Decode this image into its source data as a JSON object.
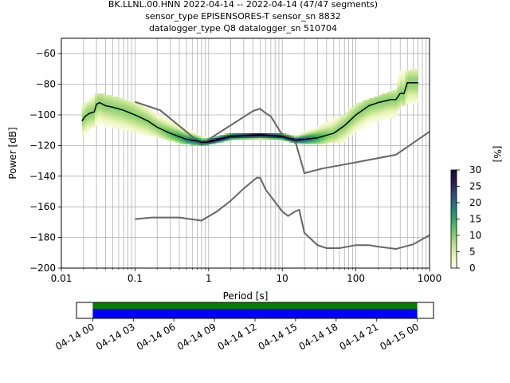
{
  "title": {
    "line1": "BK.LLNL.00.HNN   2022-04-14 -- 2022-04-14  (47/47 segments)",
    "line2": "sensor_type EPISENSORES-T sensor_sn 8832",
    "line3": "datalogger_type Q8 datalogger_sn 510704"
  },
  "colors": {
    "mean": "#000000",
    "noise_models": "#666666",
    "grid": "#b0b0b0",
    "coverage_data": "#008000",
    "coverage_gaps": "#0000ff"
  },
  "chart_data": [
    {
      "type": "heatmap",
      "title": "",
      "xlabel": "Period [s]",
      "ylabel": "Power [dB]",
      "xscale": "log",
      "xlim": [
        0.01,
        1000
      ],
      "ylim": [
        -200,
        -50
      ],
      "x_ticks": [
        0.01,
        0.1,
        1,
        10,
        100,
        1000
      ],
      "x_tick_labels": [
        "0.01",
        "0.1",
        "1",
        "10",
        "100",
        "1000"
      ],
      "y_ticks": [
        -200,
        -180,
        -160,
        -140,
        -120,
        -100,
        -80,
        -60
      ],
      "y_tick_labels": [
        "−200",
        "−180",
        "−160",
        "−140",
        "−120",
        "−100",
        "−80",
        "−60"
      ],
      "grid": true,
      "colorbar": {
        "label": "[%]",
        "range": [
          0,
          30
        ],
        "ticks": [
          0,
          5,
          10,
          15,
          20,
          25,
          30
        ],
        "colormap": [
          "#fffff0",
          "#e8f3b3",
          "#b5de84",
          "#6cc95e",
          "#2ea86a",
          "#1f7d7a",
          "#2a4e7c",
          "#301a4e",
          "#140a28"
        ]
      },
      "series": [
        {
          "name": "mean",
          "period": [
            0.019,
            0.021,
            0.024,
            0.028,
            0.03,
            0.033,
            0.04,
            0.05,
            0.07,
            0.1,
            0.15,
            0.2,
            0.3,
            0.5,
            0.7,
            0.8,
            1.0,
            1.5,
            2,
            3,
            5,
            7,
            10,
            15,
            20,
            30,
            50,
            70,
            100,
            150,
            200,
            300,
            350,
            400,
            450,
            500,
            700
          ],
          "power": [
            -104,
            -101,
            -99,
            -98,
            -93,
            -92,
            -94,
            -95,
            -97,
            -100,
            -104,
            -108,
            -112,
            -116,
            -117,
            -118,
            -117.5,
            -115.5,
            -114,
            -113.5,
            -113,
            -113.5,
            -114,
            -116.5,
            -116,
            -115,
            -112,
            -107,
            -100,
            -94,
            -92,
            -90,
            -90,
            -86,
            -86,
            -79,
            -79
          ]
        },
        {
          "name": "high-noise-model",
          "period": [
            0.1,
            0.22,
            0.8,
            4,
            5,
            6,
            7,
            10,
            15,
            20,
            35,
            100,
            350,
            1000
          ],
          "power": [
            -91.5,
            -97,
            -119,
            -97.5,
            -96,
            -99,
            -101,
            -113,
            -117,
            -138,
            -135,
            -131,
            -126,
            -111
          ]
        },
        {
          "name": "low-noise-model",
          "period": [
            0.1,
            0.17,
            0.4,
            0.8,
            1.3,
            2,
            3,
            4.5,
            5,
            6,
            10,
            12,
            15,
            17,
            20,
            30,
            40,
            60,
            100,
            150,
            200,
            350,
            600,
            1000
          ],
          "power": [
            -168,
            -167,
            -167,
            -169,
            -163,
            -156,
            -148,
            -141,
            -141,
            -149,
            -163,
            -166,
            -163,
            -162,
            -177,
            -185,
            -187,
            -187,
            -185,
            -185,
            -186,
            -187.5,
            -184.5,
            -178.5
          ]
        }
      ],
      "density_band": [
        {
          "period": 0.019,
          "low": -113,
          "high": -95
        },
        {
          "period": 0.03,
          "low": -106,
          "high": -86
        },
        {
          "period": 0.05,
          "low": -108,
          "high": -88
        },
        {
          "period": 0.1,
          "low": -111,
          "high": -92
        },
        {
          "period": 0.2,
          "low": -114,
          "high": -100
        },
        {
          "period": 0.4,
          "low": -118,
          "high": -107
        },
        {
          "period": 0.8,
          "low": -120,
          "high": -114
        },
        {
          "period": 1.0,
          "low": -119,
          "high": -116
        },
        {
          "period": 2.0,
          "low": -116,
          "high": -112
        },
        {
          "period": 5.0,
          "low": -115,
          "high": -112
        },
        {
          "period": 10,
          "low": -116,
          "high": -112
        },
        {
          "period": 15,
          "low": -118,
          "high": -114
        },
        {
          "period": 20,
          "low": -119,
          "high": -112
        },
        {
          "period": 40,
          "low": -118,
          "high": -105
        },
        {
          "period": 70,
          "low": -117,
          "high": -100
        },
        {
          "period": 100,
          "low": -110,
          "high": -93
        },
        {
          "period": 200,
          "low": -106,
          "high": -88
        },
        {
          "period": 350,
          "low": -101,
          "high": -84
        },
        {
          "period": 400,
          "low": -94,
          "high": -72
        },
        {
          "period": 700,
          "low": -91,
          "high": -70
        }
      ]
    },
    {
      "type": "bar",
      "title": "",
      "xlabel": "",
      "ylabel": "",
      "x_tick_labels": [
        "04-14 00",
        "04-14 03",
        "04-14 06",
        "04-14 09",
        "04-14 12",
        "04-14 15",
        "04-14 18",
        "04-14 21",
        "04-15 00"
      ],
      "xlim_hours": [
        -1.2,
        25.2
      ],
      "coverage": [
        {
          "name": "data",
          "start_hour": 0,
          "end_hour": 24
        },
        {
          "name": "gaps",
          "start_hour": 0,
          "end_hour": 24
        }
      ]
    }
  ]
}
